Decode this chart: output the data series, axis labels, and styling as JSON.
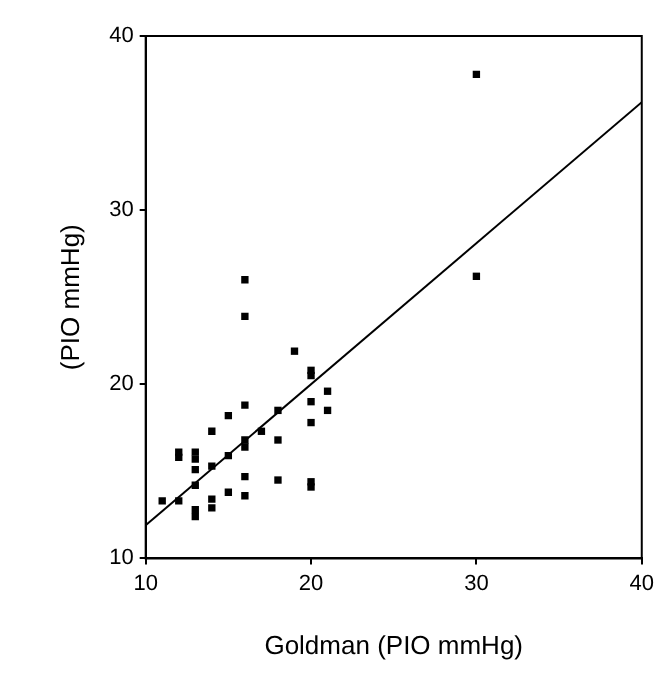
{
  "chart_data": {
    "type": "scatter",
    "xlabel": "Goldman (PIO mmHg)",
    "ylabel": "(PIO mmHg)",
    "xlim": [
      10,
      40
    ],
    "xticks": [
      10,
      20,
      30,
      40
    ],
    "ylim": [
      10,
      40
    ],
    "yticks": [
      10,
      20,
      30,
      40
    ],
    "grid": false,
    "legend": false,
    "series": [
      {
        "marker": "square",
        "color": "#000000",
        "x": [
          11,
          12,
          12,
          12,
          13,
          13,
          13,
          13,
          13,
          13,
          14,
          14,
          14,
          14,
          15,
          15,
          15,
          16,
          16,
          16,
          16,
          16,
          16,
          16,
          17,
          18,
          18,
          18,
          19,
          20,
          20,
          20,
          20,
          20,
          20,
          21,
          21,
          30,
          30
        ],
        "values": [
          13.3,
          16.1,
          15.8,
          13.3,
          16.1,
          15.7,
          15.1,
          14.2,
          12.8,
          12.4,
          17.3,
          15.3,
          13.4,
          12.9,
          18.2,
          15.9,
          13.8,
          26.0,
          23.9,
          18.8,
          16.8,
          16.4,
          14.7,
          13.6,
          17.3,
          18.5,
          16.8,
          14.5,
          21.9,
          20.8,
          20.5,
          19.0,
          17.8,
          14.4,
          14.1,
          19.6,
          18.5,
          37.8,
          26.2
        ]
      },
      {
        "type": "line",
        "marker": "none",
        "color": "#000000",
        "x": [
          10,
          40
        ],
        "values": [
          11.9,
          36.2
        ]
      }
    ]
  }
}
